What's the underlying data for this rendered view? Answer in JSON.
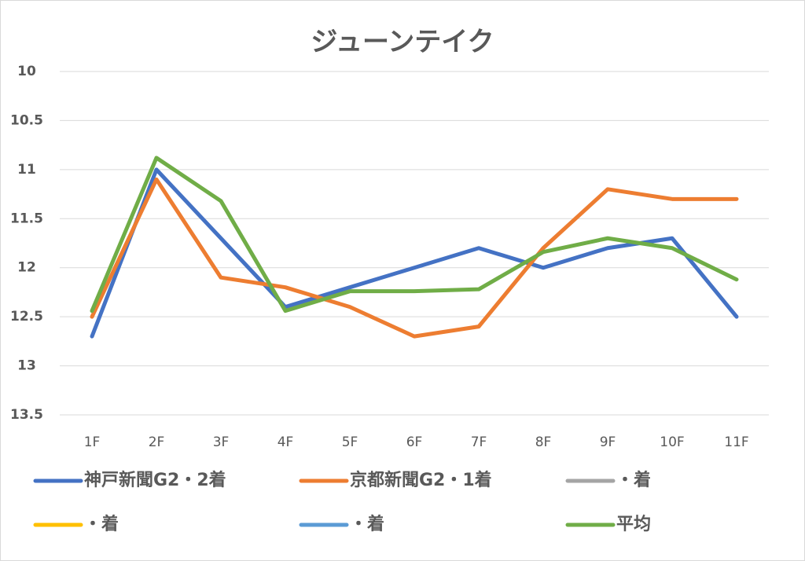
{
  "chart_data": {
    "type": "line",
    "title": "ジューンテイク",
    "categories": [
      "1F",
      "2F",
      "3F",
      "4F",
      "5F",
      "6F",
      "7F",
      "8F",
      "9F",
      "10F",
      "11F"
    ],
    "series": [
      {
        "name": "神戸新聞G2・2着",
        "color": "#4472c4",
        "values": [
          12.7,
          11.0,
          11.7,
          12.4,
          12.2,
          12.0,
          11.8,
          12.0,
          11.8,
          11.7,
          12.5
        ]
      },
      {
        "name": "京都新聞G2・1着",
        "color": "#ed7d31",
        "values": [
          12.5,
          11.1,
          12.1,
          12.2,
          12.4,
          12.7,
          12.6,
          11.8,
          11.2,
          11.3,
          11.3
        ]
      },
      {
        "name": "・着",
        "color": "#a5a5a5",
        "values": [
          null,
          null,
          null,
          null,
          null,
          null,
          null,
          null,
          null,
          null,
          null
        ]
      },
      {
        "name": "・着",
        "color": "#ffc000",
        "values": [
          null,
          null,
          null,
          null,
          null,
          null,
          null,
          null,
          null,
          null,
          null
        ]
      },
      {
        "name": "・着",
        "color": "#5b9bd5",
        "values": [
          null,
          null,
          null,
          null,
          null,
          null,
          null,
          null,
          null,
          null,
          null
        ]
      },
      {
        "name": "平均",
        "color": "#70ad47",
        "values": [
          12.44,
          10.88,
          11.32,
          12.44,
          12.24,
          12.24,
          12.22,
          11.84,
          11.7,
          11.8,
          12.12
        ]
      }
    ],
    "ylim": [
      10,
      13.5
    ],
    "y_inverted": true,
    "yticks": [
      10,
      10.5,
      11,
      11.5,
      12,
      12.5,
      13,
      13.5
    ],
    "grid": true,
    "legend": "bottom"
  }
}
